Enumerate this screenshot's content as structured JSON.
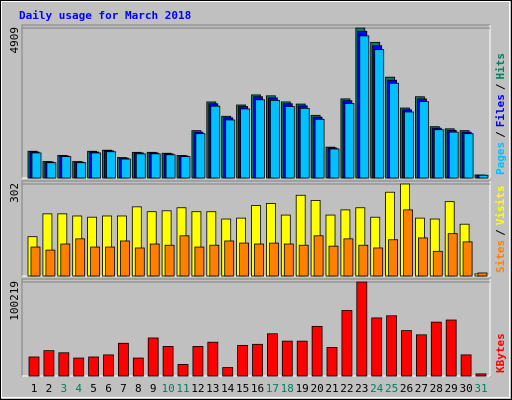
{
  "chart_data": [
    {
      "type": "bar",
      "title": "Daily usage for March 2018",
      "ylim": [
        0,
        4909
      ],
      "yticks": [
        4909
      ],
      "legend_separator": "/",
      "series": [
        {
          "name": "Hits",
          "color": "#00805c",
          "values": [
            875,
            540,
            740,
            540,
            875,
            910,
            670,
            840,
            840,
            810,
            740,
            1550,
            2490,
            2020,
            2390,
            2720,
            2690,
            2490,
            2420,
            2050,
            1010,
            2590,
            4909,
            4440,
            3300,
            2290,
            2660,
            1680,
            1610,
            1550,
            100
          ]
        },
        {
          "name": "Files",
          "color": "#0000ff",
          "values": [
            850,
            520,
            720,
            520,
            850,
            890,
            650,
            820,
            820,
            790,
            720,
            1500,
            2430,
            1970,
            2340,
            2660,
            2620,
            2430,
            2360,
            1990,
            980,
            2530,
            4800,
            4330,
            3200,
            2230,
            2590,
            1630,
            1560,
            1500,
            95
          ]
        },
        {
          "name": "Pages",
          "color": "#00c0ff",
          "values": [
            820,
            500,
            700,
            500,
            820,
            860,
            620,
            790,
            790,
            760,
            700,
            1450,
            2350,
            1900,
            2260,
            2560,
            2540,
            2340,
            2280,
            1920,
            950,
            2440,
            4650,
            4200,
            3100,
            2160,
            2500,
            1580,
            1500,
            1450,
            90
          ]
        }
      ]
    },
    {
      "type": "bar",
      "ylim": [
        0,
        302
      ],
      "yticks": [
        302
      ],
      "legend_separator": "/",
      "series": [
        {
          "name": "Visits",
          "color": "#ffff00",
          "values": [
            129,
            204,
            204,
            197,
            193,
            197,
            197,
            227,
            211,
            214,
            224,
            211,
            211,
            187,
            190,
            231,
            238,
            200,
            265,
            248,
            200,
            217,
            224,
            193,
            275,
            302,
            190,
            187,
            244,
            170,
            7
          ]
        },
        {
          "name": "Sites",
          "color": "#ff8000",
          "values": [
            95,
            85,
            105,
            122,
            95,
            95,
            115,
            92,
            105,
            101,
            132,
            95,
            101,
            115,
            108,
            105,
            108,
            105,
            101,
            132,
            98,
            122,
            101,
            92,
            119,
            217,
            125,
            81,
            139,
            112,
            10
          ]
        }
      ]
    },
    {
      "type": "bar",
      "ylim": [
        0,
        100219
      ],
      "yticks": [
        100219
      ],
      "categories": [
        "1",
        "2",
        "3",
        "4",
        "5",
        "6",
        "7",
        "8",
        "9",
        "10",
        "11",
        "12",
        "13",
        "14",
        "15",
        "16",
        "17",
        "18",
        "19",
        "20",
        "21",
        "22",
        "23",
        "24",
        "25",
        "26",
        "27",
        "28",
        "29",
        "30",
        "31"
      ],
      "category_colors": [
        "#000000",
        "#000000",
        "#00805c",
        "#00805c",
        "#000000",
        "#000000",
        "#000000",
        "#000000",
        "#000000",
        "#00805c",
        "#00805c",
        "#000000",
        "#000000",
        "#000000",
        "#000000",
        "#000000",
        "#00805c",
        "#00805c",
        "#000000",
        "#000000",
        "#000000",
        "#000000",
        "#000000",
        "#00805c",
        "#00805c",
        "#000000",
        "#000000",
        "#000000",
        "#000000",
        "#000000",
        "#00805c"
      ],
      "series": [
        {
          "name": "KBytes",
          "color": "#ff0000",
          "values": [
            20270,
            27030,
            24770,
            19140,
            20270,
            22520,
            34900,
            19140,
            40540,
            31530,
            12390,
            31530,
            36030,
            9010,
            32650,
            33780,
            45040,
            37160,
            37160,
            52930,
            30400,
            69820,
            100219,
            61930,
            64190,
            48420,
            43920,
            57430,
            59680,
            22520,
            2250
          ]
        }
      ]
    }
  ]
}
